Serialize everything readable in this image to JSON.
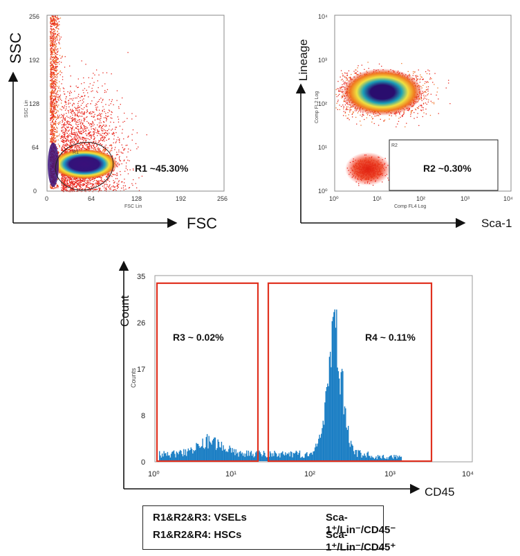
{
  "chart_data": [
    {
      "type": "scatter",
      "panel": "top-left",
      "xlabel": "FSC",
      "ylabel": "SSC",
      "x_instrument_label": "FSC Lin",
      "y_instrument_label": "SSC Lin",
      "xticks": [
        "0",
        "64",
        "128",
        "192",
        "256"
      ],
      "yticks": [
        "0",
        "64",
        "128",
        "192",
        "256"
      ],
      "xlim": [
        0,
        256
      ],
      "ylim": [
        0,
        256
      ],
      "gate": {
        "name": "R1",
        "label": "R1  ~45.30%",
        "shape": "ellipse",
        "center": [
          52,
          36
        ]
      },
      "density_color": "#e01010"
    },
    {
      "type": "scatter",
      "panel": "top-right",
      "xlabel": "Sca-1",
      "ylabel": "Lineage",
      "x_instrument_label": "Comp FL4 Log",
      "y_instrument_label": "Comp FL2 Log",
      "log_scale": true,
      "xticks": [
        "10⁰",
        "10¹",
        "10²",
        "10³",
        "10⁴"
      ],
      "yticks": [
        "10⁰",
        "10¹",
        "10²",
        "10³",
        "10⁴"
      ],
      "gate": {
        "name": "R2",
        "label": "R2 ~0.30%",
        "shape": "rectangle",
        "x_range": [
          18,
          5000
        ],
        "y_range": [
          1,
          18
        ]
      }
    },
    {
      "type": "histogram",
      "panel": "bottom",
      "xlabel": "CD45",
      "ylabel": "Count",
      "y_instrument_label": "Counts",
      "log_scale_x": true,
      "xticks": [
        "10⁰",
        "10¹",
        "10²",
        "10³",
        "10⁴"
      ],
      "yticks": [
        "0",
        "8",
        "17",
        "26",
        "35"
      ],
      "ylim": [
        0,
        35
      ],
      "peak": {
        "x": 180,
        "y": 31
      },
      "gates": [
        {
          "name": "R3",
          "label": "R3 ~ 0.02%",
          "x_range": [
            1.1,
            20
          ]
        },
        {
          "name": "R4",
          "label": "R4 ~ 0.11%",
          "x_range": [
            26,
            3000
          ]
        }
      ],
      "bar_color": "#1b7ec4",
      "gate_color": "#e0301e"
    }
  ],
  "legend": [
    {
      "left": "R1&R2&R3: VSELs",
      "right": "Sca-1⁺/Lin⁻/CD45⁻"
    },
    {
      "left": "R1&R2&R4: HSCs",
      "right": "Sca-1⁺/Lin⁻/CD45⁺"
    }
  ]
}
